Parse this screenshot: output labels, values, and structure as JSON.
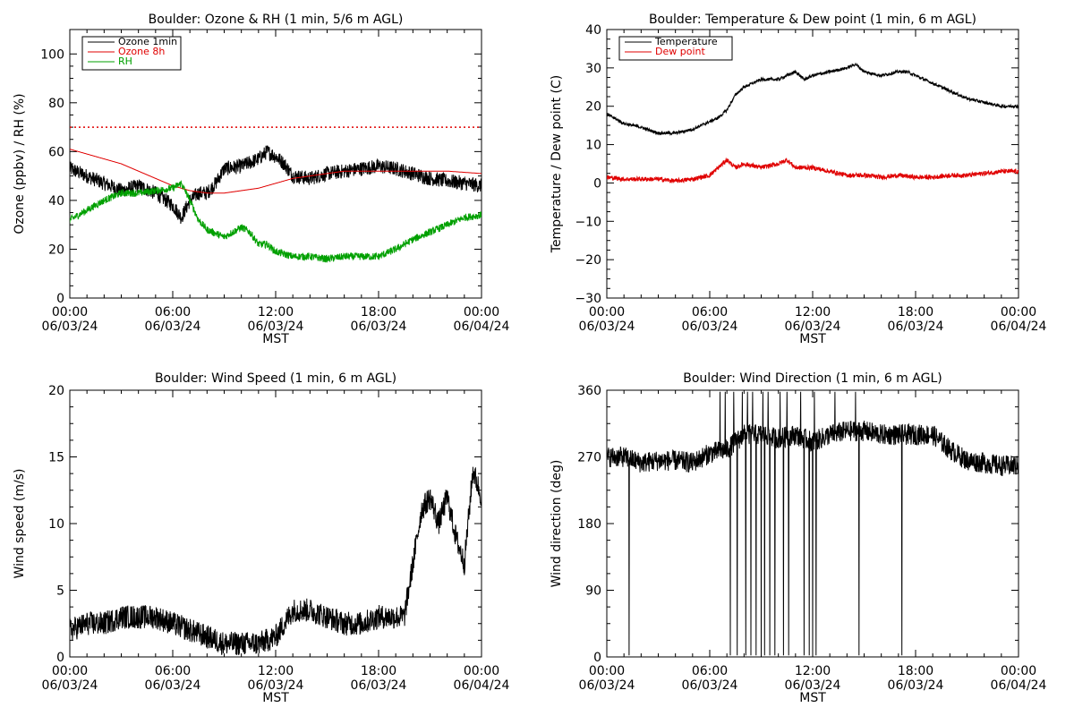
{
  "colors": {
    "black": "#000000",
    "red": "#e00000",
    "green": "#00a000"
  },
  "chart_data": [
    {
      "type": "line",
      "title": "Boulder: Ozone & RH (1 min, 5/6 m AGL)",
      "ylabel": "Ozone (ppbv) / RH (%)",
      "xlabel": "MST",
      "ylim": [
        0,
        110
      ],
      "yticks": [
        0,
        20,
        40,
        60,
        80,
        100
      ],
      "ytick_labels": [
        "0",
        "20",
        "40",
        "60",
        "80",
        "100"
      ],
      "x_ticks": [
        "00:00\n06/03/24",
        "06:00\n06/03/24",
        "12:00\n06/03/24",
        "18:00\n06/03/24",
        "00:00\n06/04/24"
      ],
      "xlim": [
        0,
        24
      ],
      "reference_line": {
        "y": 70,
        "color": "#e00000",
        "style": "dotted"
      },
      "legend": "top-left",
      "series": [
        {
          "name": "Ozone 1min",
          "color": "#000000",
          "noise": 3,
          "x": [
            0,
            1,
            2,
            3,
            4,
            5,
            6,
            6.5,
            7,
            7.5,
            8,
            8.5,
            9,
            10,
            11,
            11.5,
            12,
            12.5,
            13,
            14,
            15,
            16,
            17,
            18,
            19,
            20,
            21,
            22,
            23,
            24
          ],
          "y": [
            53,
            50,
            47,
            44,
            46,
            43,
            38,
            33,
            40,
            43,
            43,
            47,
            53,
            54,
            57,
            60,
            58,
            55,
            50,
            49,
            51,
            52,
            53,
            54,
            53,
            51,
            49,
            48,
            47,
            46
          ]
        },
        {
          "name": "Ozone 8h",
          "color": "#e00000",
          "noise": 0,
          "x": [
            0,
            1,
            2,
            3,
            4,
            5,
            6,
            7,
            8,
            9,
            10,
            11,
            12,
            13,
            14,
            15,
            16,
            17,
            18,
            19,
            20,
            21,
            22,
            23,
            24
          ],
          "y": [
            61,
            59,
            57,
            55,
            52,
            49,
            46,
            44,
            43,
            43,
            44,
            45,
            47,
            49,
            50,
            51,
            52,
            52,
            52,
            52,
            52,
            52,
            52,
            51.5,
            51
          ]
        },
        {
          "name": "RH",
          "color": "#00a000",
          "noise": 1.5,
          "x": [
            0,
            1,
            2,
            3,
            4,
            5,
            6,
            6.5,
            7,
            7.5,
            8,
            9,
            10,
            10.5,
            11,
            11.5,
            12,
            13,
            14,
            15,
            16,
            17,
            18,
            19,
            20,
            21,
            22,
            23,
            24
          ],
          "y": [
            32,
            36,
            40,
            43,
            43,
            44,
            45,
            47,
            40,
            32,
            28,
            25,
            29,
            27,
            22,
            22,
            19,
            17,
            17,
            16,
            17,
            17,
            17,
            20,
            24,
            27,
            30,
            33,
            34
          ]
        }
      ]
    },
    {
      "type": "line",
      "title": "Boulder: Temperature & Dew point (1 min, 6 m AGL)",
      "ylabel": "Temperature / Dew point (C)",
      "xlabel": "MST",
      "ylim": [
        -30,
        40
      ],
      "yticks": [
        -30,
        -20,
        -10,
        0,
        10,
        20,
        30,
        40
      ],
      "ytick_labels": [
        "−30",
        "−20",
        "−10",
        "0",
        "10",
        "20",
        "30",
        "40"
      ],
      "x_ticks": [
        "00:00\n06/03/24",
        "06:00\n06/03/24",
        "12:00\n06/03/24",
        "18:00\n06/03/24",
        "00:00\n06/04/24"
      ],
      "xlim": [
        0,
        24
      ],
      "legend": "top-left",
      "series": [
        {
          "name": "Temperature",
          "color": "#000000",
          "noise": 0.4,
          "x": [
            0,
            1,
            2,
            3,
            4,
            5,
            5.5,
            6,
            6.5,
            7,
            7.5,
            8,
            9,
            10,
            10.5,
            11,
            11.5,
            12,
            13,
            14,
            14.5,
            15,
            16,
            17,
            17.5,
            18,
            19,
            20,
            21,
            22,
            23,
            24
          ],
          "y": [
            18,
            15.5,
            14.5,
            13,
            13,
            14,
            15,
            16,
            17,
            19,
            23,
            25,
            27,
            27,
            28,
            29,
            27,
            28,
            29,
            30,
            31,
            29,
            28,
            29,
            29,
            28,
            26,
            24,
            22,
            21,
            20,
            20
          ]
        },
        {
          "name": "Dew point",
          "color": "#e00000",
          "noise": 0.6,
          "x": [
            0,
            1,
            2,
            3,
            4,
            5,
            6,
            6.5,
            7,
            7.5,
            8,
            9,
            10,
            10.5,
            11,
            12,
            13,
            14,
            15,
            16,
            17,
            18,
            19,
            20,
            21,
            22,
            23,
            24
          ],
          "y": [
            1.5,
            1,
            1,
            1,
            0.5,
            1,
            2,
            4,
            6,
            4,
            5,
            4,
            5,
            6,
            4,
            4,
            3,
            2,
            2,
            1.5,
            2,
            1.5,
            1.5,
            2,
            2,
            2.5,
            3,
            3
          ]
        }
      ]
    },
    {
      "type": "line",
      "title": "Boulder: Wind Speed (1 min, 6 m AGL)",
      "ylabel": "Wind speed (m/s)",
      "xlabel": "MST",
      "ylim": [
        0,
        20
      ],
      "yticks": [
        0,
        5,
        10,
        15,
        20
      ],
      "ytick_labels": [
        "0",
        "5",
        "10",
        "15",
        "20"
      ],
      "x_ticks": [
        "00:00\n06/03/24",
        "06:00\n06/03/24",
        "12:00\n06/03/24",
        "18:00\n06/03/24",
        "00:00\n06/04/24"
      ],
      "xlim": [
        0,
        24
      ],
      "series": [
        {
          "name": "",
          "color": "#000000",
          "noise": 0.9,
          "x": [
            0,
            1,
            2,
            3,
            4,
            5,
            6,
            7,
            8,
            9,
            10,
            11,
            12,
            13,
            14,
            15,
            16,
            17,
            18,
            19,
            19.5,
            20,
            20.5,
            21,
            21.5,
            22,
            22.5,
            23,
            23.5,
            24
          ],
          "y": [
            2,
            2.5,
            2.5,
            3,
            3,
            3,
            2.5,
            2,
            1.5,
            1,
            1,
            1,
            1.5,
            3.5,
            3.5,
            3,
            2.5,
            2.5,
            3,
            3,
            3,
            7,
            11,
            12,
            10,
            12,
            9,
            7,
            14,
            12
          ]
        }
      ]
    },
    {
      "type": "line",
      "title": "Boulder: Wind Direction (1 min, 6 m AGL)",
      "ylabel": "Wind direction (deg)",
      "xlabel": "MST",
      "ylim": [
        0,
        360
      ],
      "yticks": [
        0,
        90,
        180,
        270,
        360
      ],
      "ytick_labels": [
        "0",
        "90",
        "180",
        "270",
        "360"
      ],
      "x_ticks": [
        "00:00\n06/03/24",
        "06:00\n06/03/24",
        "12:00\n06/03/24",
        "18:00\n06/03/24",
        "00:00\n06/04/24"
      ],
      "xlim": [
        0,
        24
      ],
      "series": [
        {
          "name": "",
          "color": "#000000",
          "noise": 14,
          "x": [
            0,
            1,
            2,
            3,
            4,
            5,
            6,
            7,
            8,
            9,
            10,
            11,
            12,
            13,
            14,
            15,
            16,
            17,
            18,
            19,
            20,
            21,
            22,
            23,
            24
          ],
          "y": [
            270,
            270,
            262,
            265,
            265,
            262,
            275,
            280,
            300,
            300,
            295,
            300,
            290,
            300,
            305,
            305,
            300,
            300,
            300,
            300,
            280,
            265,
            262,
            258,
            258
          ]
        }
      ],
      "spikes_to_zero_hours": [
        1.3,
        7.2,
        7.6,
        8.1,
        8.4,
        8.7,
        9.0,
        9.2,
        9.5,
        9.8,
        10.3,
        10.6,
        11.5,
        11.8,
        12.0,
        12.2,
        14.7,
        17.2
      ],
      "spikes_to_360_hours": [
        6.6,
        6.9,
        7.4,
        7.9,
        8.2,
        8.5,
        9.1,
        9.4,
        10.1,
        10.5,
        11.3,
        12.1,
        13.3,
        14.5
      ]
    }
  ]
}
